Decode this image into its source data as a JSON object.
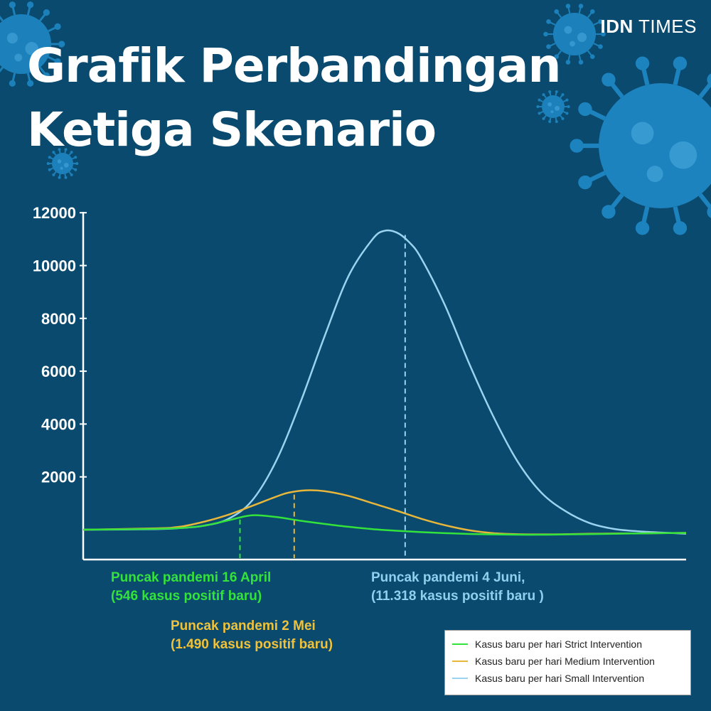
{
  "brand": {
    "bold": "IDN",
    "rest": "TIMES"
  },
  "title": {
    "line1": "Grafik Perbandingan",
    "line2": "Ketiga Skenario"
  },
  "colors": {
    "background": "#0a4a6e",
    "strict": "#33e23a",
    "medium": "#e8b63a",
    "small": "#9ad3ef",
    "virus": "#1f87c4"
  },
  "chart_data": {
    "type": "line",
    "title": "Grafik Perbandingan Ketiga Skenario",
    "xlabel": "",
    "ylabel": "",
    "ylim": [
      -1000,
      12000
    ],
    "yticks": [
      2000,
      4000,
      6000,
      8000,
      10000,
      12000
    ],
    "x_range": [
      0,
      100
    ],
    "legend_position": "bottom-right",
    "grid": false,
    "series": [
      {
        "name": "Kasus baru per hari Strict Intervention",
        "key": "strict",
        "x": [
          0,
          12,
          16,
          20,
          24,
          28,
          32,
          36,
          40,
          44,
          48,
          52,
          56,
          60,
          64,
          68,
          72,
          76,
          80,
          86,
          92,
          100
        ],
        "y": [
          0,
          30,
          60,
          150,
          350,
          546,
          480,
          340,
          220,
          110,
          20,
          -40,
          -90,
          -130,
          -160,
          -180,
          -190,
          -190,
          -180,
          -160,
          -140,
          -120
        ]
      },
      {
        "name": "Kasus baru per hari Medium Intervention",
        "key": "medium",
        "x": [
          0,
          12,
          16,
          20,
          24,
          28,
          32,
          34,
          37,
          40,
          44,
          48,
          52,
          56,
          60,
          64,
          68,
          72,
          76,
          80,
          86,
          92,
          100
        ],
        "y": [
          0,
          50,
          110,
          300,
          560,
          900,
          1250,
          1400,
          1490,
          1460,
          1280,
          1000,
          720,
          420,
          170,
          -20,
          -130,
          -170,
          -180,
          -170,
          -150,
          -140,
          -120
        ]
      },
      {
        "name": "Kasus baru per hari Small Intervention",
        "key": "small",
        "x": [
          0,
          12,
          16,
          20,
          24,
          28,
          32,
          36,
          40,
          44,
          48,
          50,
          52,
          54,
          56,
          60,
          64,
          68,
          72,
          76,
          80,
          84,
          88,
          92,
          96,
          100
        ],
        "y": [
          0,
          20,
          60,
          150,
          400,
          1100,
          2600,
          4800,
          7300,
          9600,
          11000,
          11318,
          11250,
          10900,
          10300,
          8500,
          6300,
          4300,
          2600,
          1400,
          700,
          250,
          30,
          -60,
          -110,
          -150
        ]
      }
    ],
    "peaks": [
      {
        "series": "strict",
        "x": 26,
        "y": 546,
        "label1": "Puncak pandemi 16 April",
        "label2": "(546 kasus positif baru)"
      },
      {
        "series": "medium",
        "x": 35,
        "y": 1490,
        "label1": "Puncak pandemi 2 Mei",
        "label2": "(1.490 kasus positif baru)"
      },
      {
        "series": "small",
        "x": 53.4,
        "y": 11318,
        "label1": "Puncak pandemi 4 Juni,",
        "label2": "(11.318 kasus positif baru )"
      }
    ]
  }
}
